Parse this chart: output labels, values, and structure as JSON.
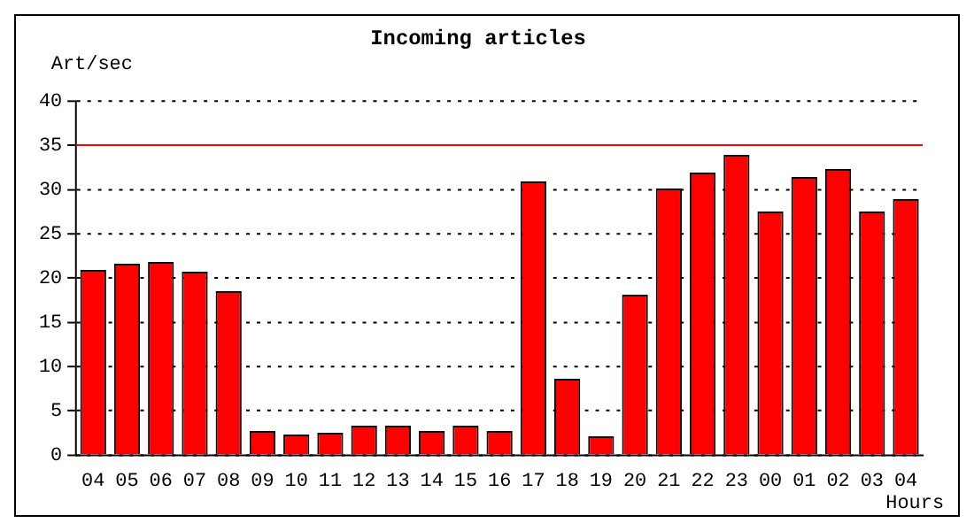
{
  "chart_data": {
    "type": "bar",
    "title": "Incoming articles",
    "ylabel": "Art/sec",
    "xlabel": "Hours",
    "categories": [
      "04",
      "05",
      "06",
      "07",
      "08",
      "09",
      "10",
      "11",
      "12",
      "13",
      "14",
      "15",
      "16",
      "17",
      "18",
      "19",
      "20",
      "21",
      "22",
      "23",
      "00",
      "01",
      "02",
      "03",
      "04"
    ],
    "values": [
      20.9,
      21.6,
      21.8,
      20.7,
      18.5,
      2.7,
      2.3,
      2.5,
      3.3,
      3.3,
      2.7,
      3.3,
      2.7,
      30.9,
      8.6,
      2.1,
      18.1,
      30.1,
      31.9,
      33.9,
      27.5,
      31.4,
      32.3,
      27.5,
      28.9
    ],
    "color": "#ff0000",
    "ylim": [
      0,
      40
    ],
    "yticks": [
      0,
      5,
      10,
      15,
      20,
      25,
      30,
      35,
      40
    ],
    "grid": "y",
    "ref_lines": [
      {
        "axis": "y",
        "value": 35,
        "color": "#ff0000"
      }
    ]
  }
}
